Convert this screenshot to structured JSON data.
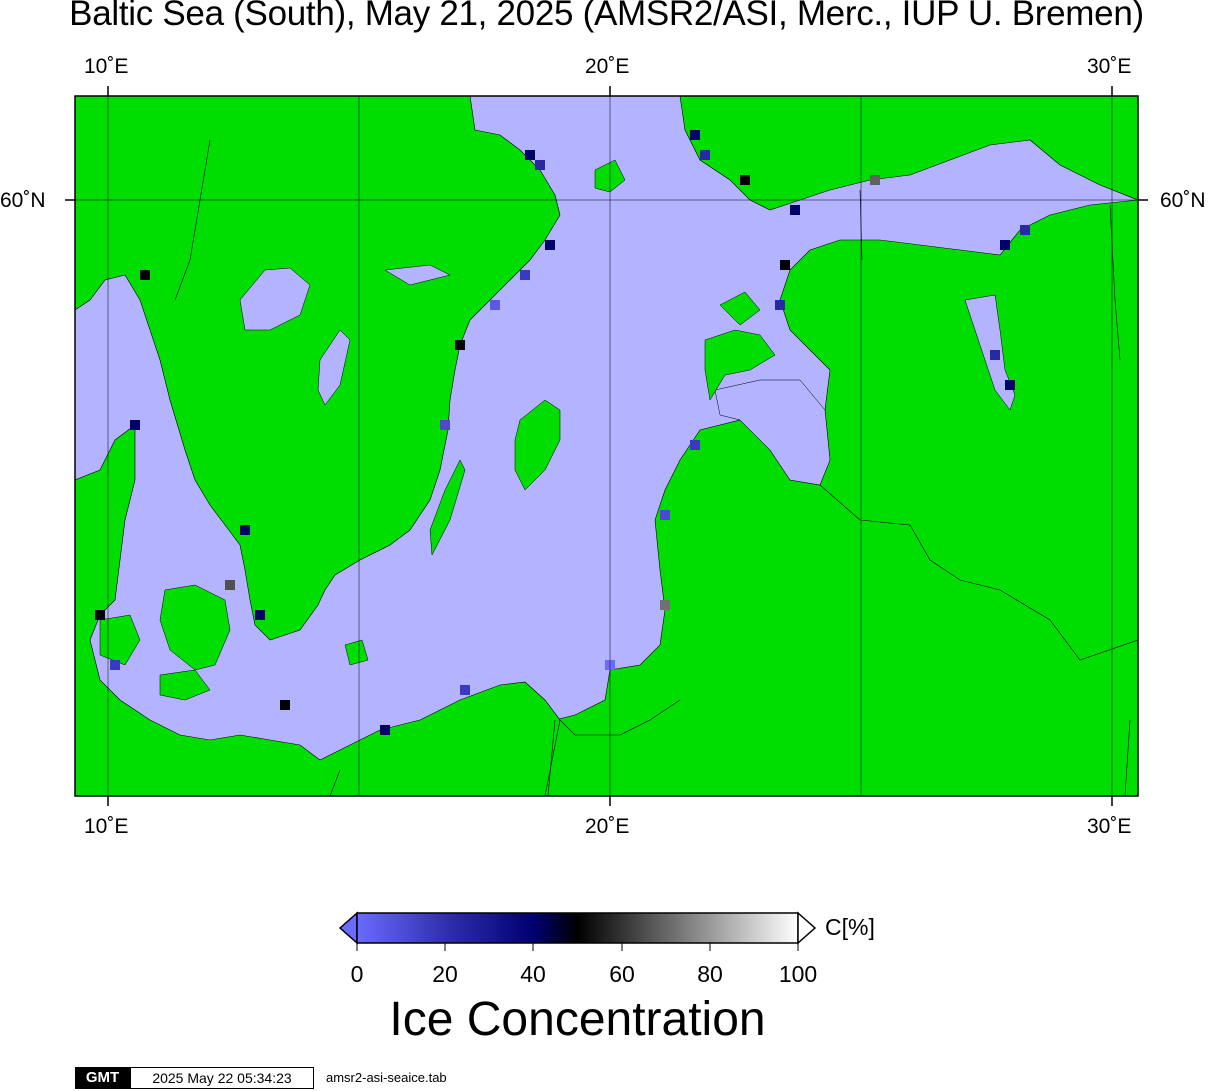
{
  "title": "Baltic Sea (South), May 21, 2025 (AMSR2/ASI, Merc., IUP U. Bremen)",
  "axes": {
    "lon_labels": [
      "10˚E",
      "20˚E",
      "30˚E"
    ],
    "lat_labels": [
      "60˚N"
    ]
  },
  "colors": {
    "land": "#00dd00",
    "open_water_ice_0": "#b3b3ff",
    "coast_cells": "#3333cc",
    "grey_cells": "#808080",
    "frame": "#000000"
  },
  "colorbar": {
    "ticks": [
      "0",
      "20",
      "40",
      "60",
      "80",
      "100"
    ],
    "unit": "C[%]",
    "title": "Ice Concentration",
    "stops": [
      "#6a6aff",
      "#000080",
      "#000000",
      "#ffffff"
    ]
  },
  "footer": {
    "logo": "GMT",
    "timestamp": "2025 May 22 05:34:23",
    "file": "amsr2-asi-seaice.tab"
  }
}
